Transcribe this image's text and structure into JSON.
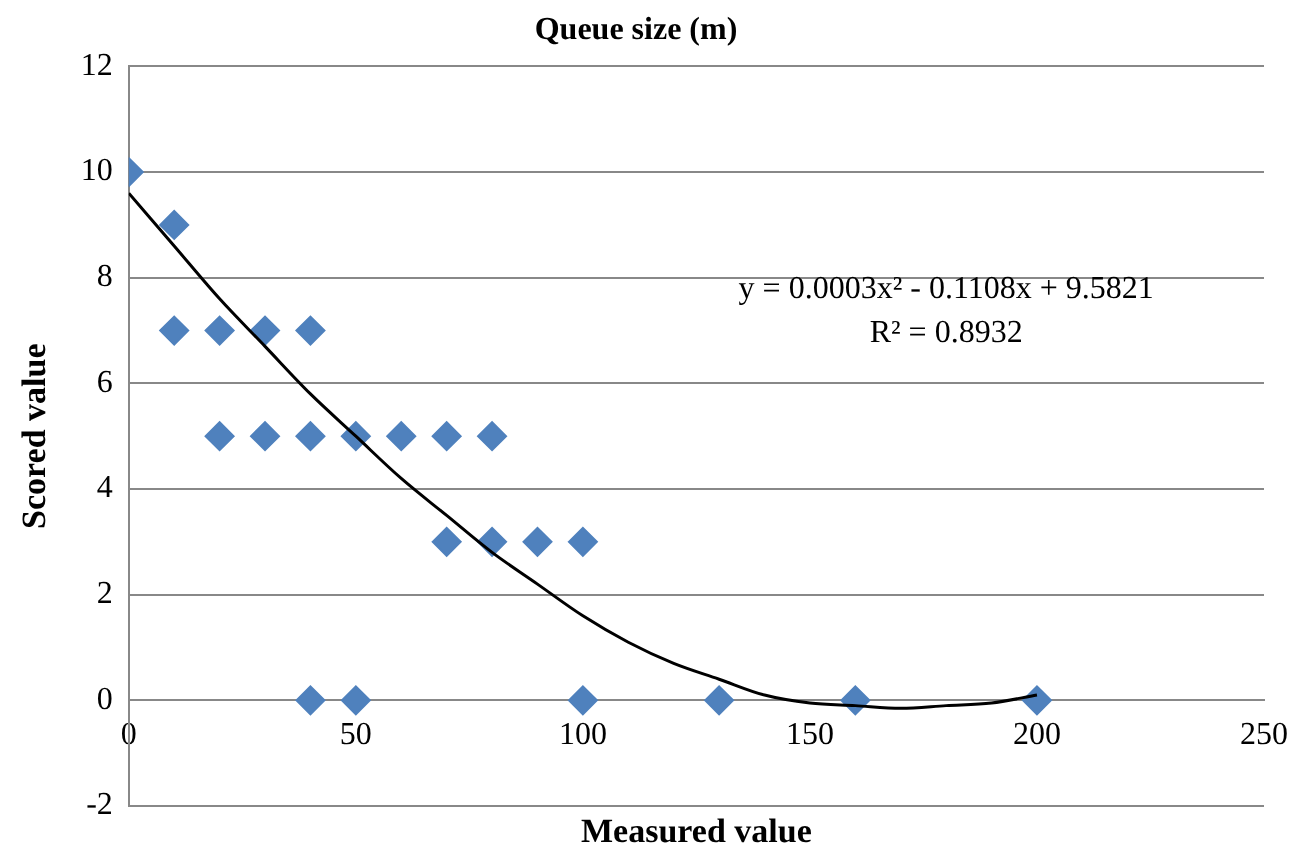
{
  "chart_data": {
    "type": "scatter",
    "title": "Queue size (m)",
    "xlabel": "Measured value",
    "ylabel": "Scored value",
    "xlim": [
      0,
      250
    ],
    "xticks": [
      0,
      50,
      100,
      150,
      200,
      250
    ],
    "ylim": [
      -2,
      12
    ],
    "yticks": [
      -2,
      0,
      2,
      4,
      6,
      8,
      10,
      12
    ],
    "grid": "y",
    "legend": false,
    "marker": "diamond",
    "annotations": [
      "y = 0.0003x² - 0.1108x + 9.5821",
      "R² = 0.8932"
    ],
    "series": [
      {
        "color": "#4f81bd",
        "x": [
          0,
          10,
          10,
          20,
          30,
          40,
          20,
          30,
          40,
          50,
          60,
          70,
          80,
          70,
          80,
          90,
          100,
          40,
          50,
          100,
          130,
          160,
          200
        ],
        "values": [
          10,
          9,
          7,
          7,
          7,
          7,
          5,
          5,
          5,
          5,
          5,
          5,
          5,
          3,
          3,
          3,
          3,
          0,
          0,
          0,
          0,
          0,
          0
        ]
      },
      {
        "type": "line",
        "color": "#000000",
        "marker": "none",
        "x": [
          0,
          10,
          20,
          30,
          40,
          50,
          60,
          70,
          80,
          90,
          100,
          110,
          120,
          130,
          140,
          150,
          160,
          170,
          180,
          190,
          200
        ],
        "values": [
          9.6,
          8.6,
          7.6,
          6.7,
          5.8,
          5.0,
          4.2,
          3.5,
          2.8,
          2.2,
          1.6,
          1.1,
          0.7,
          0.4,
          0.1,
          -0.05,
          -0.1,
          -0.15,
          -0.1,
          -0.05,
          0.1
        ]
      }
    ]
  }
}
